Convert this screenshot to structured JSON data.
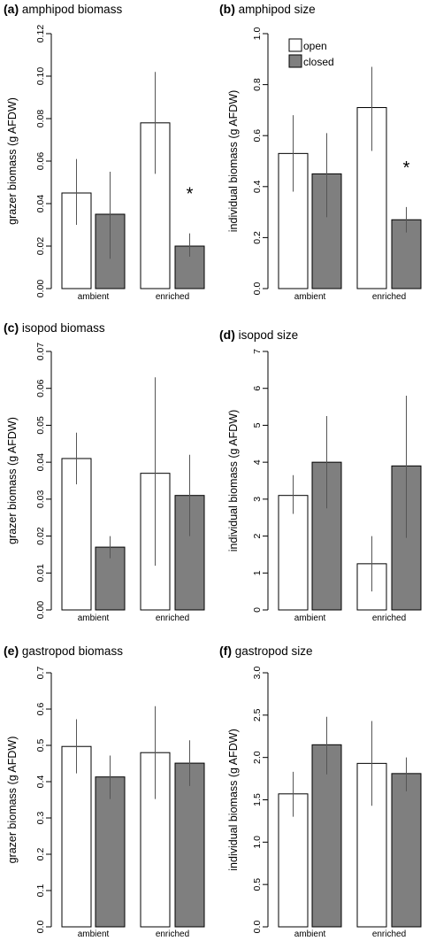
{
  "colors": {
    "open": "#ffffff",
    "closed": "#7f7f7f",
    "stroke": "#000000",
    "error": "#555555"
  },
  "legend": {
    "open_label": "open",
    "closed_label": "closed"
  },
  "chart_data": [
    {
      "id": "a",
      "type": "bar",
      "letter": "(a)",
      "title": "amphipod biomass",
      "ylabel": "grazer biomass (g AFDW)",
      "ylim": [
        0,
        0.12
      ],
      "ticks": [
        "0.00",
        "0.02",
        "0.04",
        "0.06",
        "0.08",
        "0.10",
        "0.12"
      ],
      "categories": [
        "ambient",
        "enriched"
      ],
      "series": [
        {
          "name": "open",
          "values": [
            0.045,
            0.078
          ],
          "err_low": [
            0.03,
            0.054
          ],
          "err_high": [
            0.061,
            0.102
          ]
        },
        {
          "name": "closed",
          "values": [
            0.035,
            0.02
          ],
          "err_low": [
            0.014,
            0.015
          ],
          "err_high": [
            0.055,
            0.026
          ]
        }
      ],
      "annotations": [
        {
          "text": "*",
          "category": 1,
          "series": 1
        }
      ]
    },
    {
      "id": "b",
      "type": "bar",
      "letter": "(b)",
      "title": "amphipod size",
      "ylabel": "individual biomass (g AFDW)",
      "ylim": [
        0,
        1.0
      ],
      "ticks": [
        "0.0",
        "0.2",
        "0.4",
        "0.6",
        "0.8",
        "1.0"
      ],
      "categories": [
        "ambient",
        "enriched"
      ],
      "series": [
        {
          "name": "open",
          "values": [
            0.53,
            0.71
          ],
          "err_low": [
            0.38,
            0.54
          ],
          "err_high": [
            0.68,
            0.87
          ]
        },
        {
          "name": "closed",
          "values": [
            0.45,
            0.27
          ],
          "err_low": [
            0.28,
            0.22
          ],
          "err_high": [
            0.61,
            0.32
          ]
        }
      ],
      "annotations": [
        {
          "text": "*",
          "category": 1,
          "series": 1
        }
      ]
    },
    {
      "id": "c",
      "type": "bar",
      "letter": "(c)",
      "title": "isopod biomass",
      "ylabel": "grazer biomass (g AFDW)",
      "ylim": [
        0,
        0.07
      ],
      "ticks": [
        "0.00",
        "0.01",
        "0.02",
        "0.03",
        "0.04",
        "0.05",
        "0.06",
        "0.07"
      ],
      "categories": [
        "ambient",
        "enriched"
      ],
      "series": [
        {
          "name": "open",
          "values": [
            0.041,
            0.037
          ],
          "err_low": [
            0.034,
            0.012
          ],
          "err_high": [
            0.048,
            0.063
          ]
        },
        {
          "name": "closed",
          "values": [
            0.017,
            0.031
          ],
          "err_low": [
            0.014,
            0.02
          ],
          "err_high": [
            0.02,
            0.042
          ]
        }
      ],
      "annotations": []
    },
    {
      "id": "d",
      "type": "bar",
      "letter": "(d)",
      "title": "isopod size",
      "ylabel": "individual biomass (g AFDW)",
      "ylim": [
        0,
        7
      ],
      "ticks": [
        "0",
        "1",
        "2",
        "3",
        "4",
        "5",
        "6",
        "7"
      ],
      "categories": [
        "ambient",
        "enriched"
      ],
      "series": [
        {
          "name": "open",
          "values": [
            3.1,
            1.25
          ],
          "err_low": [
            2.6,
            0.5
          ],
          "err_high": [
            3.65,
            2.0
          ]
        },
        {
          "name": "closed",
          "values": [
            4.0,
            3.9
          ],
          "err_low": [
            2.75,
            1.95
          ],
          "err_high": [
            5.25,
            5.8
          ]
        }
      ],
      "annotations": []
    },
    {
      "id": "e",
      "type": "bar",
      "letter": "(e)",
      "title": "gastropod biomass",
      "ylabel": "grazer biomass (g AFDW)",
      "ylim": [
        0,
        0.7
      ],
      "ticks": [
        "0.0",
        "0.1",
        "0.2",
        "0.3",
        "0.4",
        "0.5",
        "0.6",
        "0.7"
      ],
      "categories": [
        "ambient",
        "enriched"
      ],
      "series": [
        {
          "name": "open",
          "values": [
            0.497,
            0.48
          ],
          "err_low": [
            0.423,
            0.352
          ],
          "err_high": [
            0.572,
            0.608
          ]
        },
        {
          "name": "closed",
          "values": [
            0.413,
            0.451
          ],
          "err_low": [
            0.352,
            0.388
          ],
          "err_high": [
            0.472,
            0.514
          ]
        }
      ],
      "annotations": []
    },
    {
      "id": "f",
      "type": "bar",
      "letter": "(f)",
      "title": "gastropod size",
      "ylabel": "individual biomass (g AFDW)",
      "ylim": [
        0,
        3.0
      ],
      "ticks": [
        "0.0",
        "0.5",
        "1.0",
        "1.5",
        "2.0",
        "2.5",
        "3.0"
      ],
      "categories": [
        "ambient",
        "enriched"
      ],
      "series": [
        {
          "name": "open",
          "values": [
            1.57,
            1.93
          ],
          "err_low": [
            1.3,
            1.43
          ],
          "err_high": [
            1.83,
            2.43
          ]
        },
        {
          "name": "closed",
          "values": [
            2.15,
            1.81
          ],
          "err_low": [
            1.8,
            1.6
          ],
          "err_high": [
            2.48,
            2.0
          ]
        }
      ],
      "annotations": []
    }
  ]
}
